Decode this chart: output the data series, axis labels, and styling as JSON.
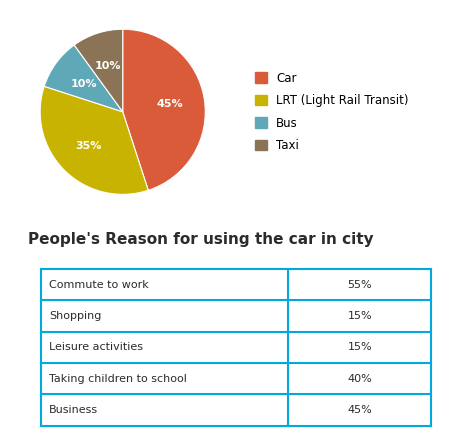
{
  "pie_labels": [
    "Car",
    "LRT (Light Rail Transit)",
    "Bus",
    "Taxi"
  ],
  "pie_values": [
    45,
    35,
    10,
    10
  ],
  "pie_colors": [
    "#D95B3A",
    "#C8B400",
    "#5FA8B8",
    "#8B7355"
  ],
  "legend_labels": [
    "Car",
    "LRT (Light Rail Transit)",
    "Bus",
    "Taxi"
  ],
  "legend_colors": [
    "#D95B3A",
    "#C8B400",
    "#5FA8B8",
    "#8B7355"
  ],
  "table_title": "People's Reason for using the car in city",
  "table_rows": [
    [
      "Commute to work",
      "55%"
    ],
    [
      "Shopping",
      "15%"
    ],
    [
      "Leisure activities",
      "15%"
    ],
    [
      "Taking children to school",
      "40%"
    ],
    [
      "Business",
      "45%"
    ]
  ],
  "table_border_color": "#00AADD",
  "background_color": "#FFFFFF",
  "table_title_fontsize": 11,
  "pie_label_fontsize": 8,
  "legend_fontsize": 8.5,
  "table_fontsize": 8
}
